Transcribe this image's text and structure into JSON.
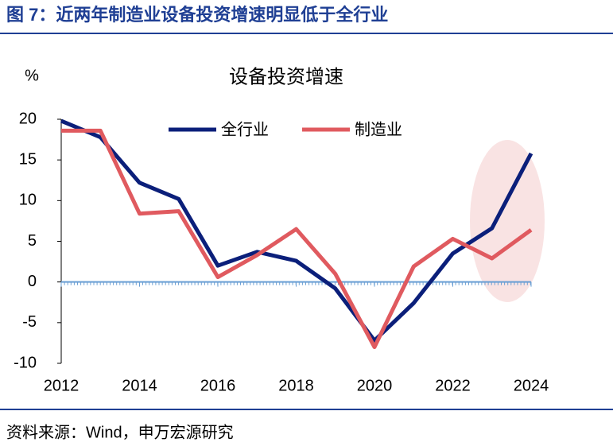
{
  "header": {
    "title": "图 7：近两年制造业设备投资增速明显低于全行业"
  },
  "chart_data": {
    "type": "line",
    "title": "设备投资增速",
    "y_label": "%",
    "x": [
      2012,
      2013,
      2014,
      2015,
      2016,
      2017,
      2018,
      2019,
      2020,
      2021,
      2022,
      2023,
      2024
    ],
    "xlim": [
      2012,
      2024
    ],
    "xticks": [
      2012,
      2014,
      2016,
      2018,
      2020,
      2022,
      2024
    ],
    "ylim": [
      -10,
      20
    ],
    "yticks": [
      -10,
      -5,
      0,
      5,
      10,
      15,
      20
    ],
    "series": [
      {
        "name": "全行业",
        "color": "#0b1f7a",
        "values": [
          19.8,
          17.8,
          12.2,
          10.2,
          2.0,
          3.7,
          2.6,
          -0.8,
          -7.2,
          -2.6,
          3.5,
          6.6,
          15.8
        ]
      },
      {
        "name": "制造业",
        "color": "#e05a5f",
        "values": [
          18.6,
          18.6,
          8.4,
          8.7,
          0.6,
          3.3,
          6.5,
          1.0,
          -8.0,
          1.9,
          5.3,
          2.9,
          6.4
        ]
      }
    ]
  },
  "footer": {
    "source": "资料来源：Wind，申万宏源研究"
  }
}
